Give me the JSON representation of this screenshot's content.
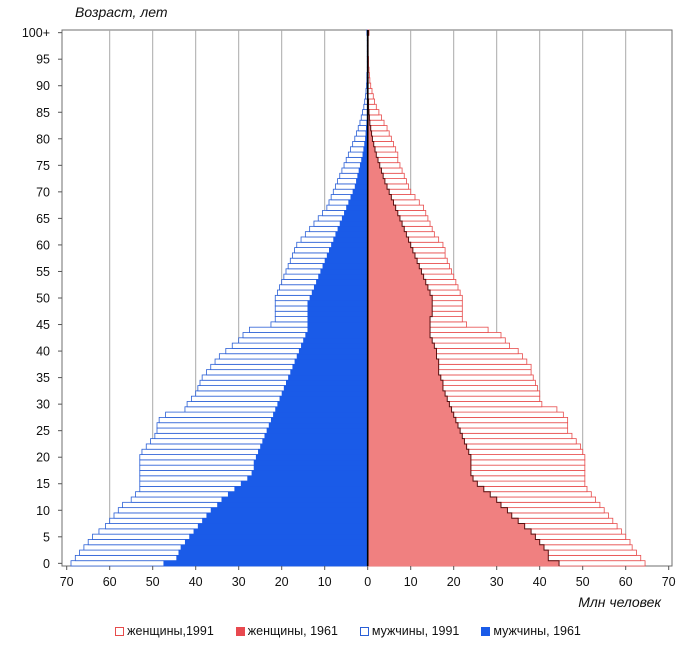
{
  "chart_data": {
    "type": "bar",
    "orientation": "horizontal",
    "subtype": "population-pyramid",
    "ylabel": "Возраст,  лет",
    "xlabel": "Млн человек",
    "x_ticks": [
      "70",
      "60",
      "50",
      "40",
      "30",
      "20",
      "10",
      "0",
      "10",
      "20",
      "30",
      "40",
      "50",
      "60",
      "70"
    ],
    "y_ticks": [
      "0",
      "5",
      "10",
      "15",
      "20",
      "25",
      "30",
      "35",
      "40",
      "45",
      "50",
      "55",
      "60",
      "65",
      "70",
      "75",
      "80",
      "85",
      "90",
      "95",
      "100+"
    ],
    "xlim": [
      -70,
      70
    ],
    "ylim": [
      0,
      100
    ],
    "grid": "vertical",
    "legend_position": "bottom",
    "ages": [
      0,
      1,
      2,
      3,
      4,
      5,
      6,
      7,
      8,
      9,
      10,
      11,
      12,
      13,
      14,
      15,
      16,
      17,
      18,
      19,
      20,
      21,
      22,
      23,
      24,
      25,
      26,
      27,
      28,
      29,
      30,
      31,
      32,
      33,
      34,
      35,
      36,
      37,
      38,
      39,
      40,
      41,
      42,
      43,
      44,
      45,
      46,
      47,
      48,
      49,
      50,
      51,
      52,
      53,
      54,
      55,
      56,
      57,
      58,
      59,
      60,
      61,
      62,
      63,
      64,
      65,
      66,
      67,
      68,
      69,
      70,
      71,
      72,
      73,
      74,
      75,
      76,
      77,
      78,
      79,
      80,
      81,
      82,
      83,
      84,
      85,
      86,
      87,
      88,
      89,
      90,
      91,
      92,
      93,
      94,
      95,
      96,
      97,
      98,
      99,
      100
    ],
    "series": [
      {
        "name": "женщины,1991",
        "side": "right",
        "style": "outline",
        "color": "#e74c4c",
        "values": [
          64.5,
          63.5,
          62.5,
          61.5,
          61.0,
          60.0,
          59.0,
          58.0,
          57.0,
          56.0,
          55.0,
          54.0,
          53.0,
          52.0,
          51.0,
          50.5,
          50.5,
          50.5,
          50.5,
          50.5,
          50.5,
          50.0,
          49.5,
          48.5,
          47.5,
          46.5,
          46.5,
          46.5,
          45.5,
          44.0,
          40.5,
          40.0,
          40.0,
          39.5,
          39.0,
          38.5,
          38.0,
          38.0,
          37.0,
          36.0,
          35.0,
          33.0,
          32.0,
          31.0,
          28.0,
          23.0,
          22.0,
          22.0,
          22.0,
          22.0,
          22.0,
          21.5,
          21.0,
          20.5,
          20.0,
          19.5,
          19.0,
          18.5,
          18.0,
          18.0,
          17.5,
          16.5,
          15.5,
          15.0,
          14.5,
          14.0,
          13.5,
          13.0,
          12.0,
          11.0,
          10.0,
          9.5,
          9.0,
          8.5,
          8.0,
          7.5,
          7.0,
          7.0,
          6.5,
          6.0,
          5.5,
          5.0,
          4.5,
          3.8,
          3.2,
          2.6,
          2.0,
          1.6,
          1.3,
          1.0,
          0.7,
          0.5,
          0.4,
          0.3,
          0.2,
          0.2,
          0.1,
          0.1,
          0.1,
          0.1,
          0.3
        ]
      },
      {
        "name": "женщины,  1961",
        "side": "right",
        "style": "filled",
        "color": "#f08080",
        "values": [
          44.5,
          42.0,
          42.0,
          41.0,
          40.0,
          39.0,
          38.0,
          36.5,
          35.0,
          33.5,
          32.5,
          31.0,
          30.0,
          28.5,
          27.0,
          25.5,
          24.5,
          24.0,
          24.0,
          24.0,
          24.0,
          23.5,
          23.0,
          22.5,
          22.0,
          21.5,
          21.0,
          20.5,
          20.0,
          19.5,
          19.0,
          18.5,
          18.0,
          17.5,
          17.5,
          17.0,
          16.5,
          16.5,
          16.5,
          16.0,
          16.0,
          15.5,
          15.0,
          14.5,
          14.5,
          14.5,
          14.5,
          15.0,
          15.0,
          15.0,
          15.0,
          14.5,
          14.0,
          13.5,
          13.0,
          12.5,
          12.0,
          11.5,
          11.0,
          10.5,
          10.0,
          9.5,
          9.0,
          8.5,
          8.0,
          7.5,
          7.0,
          6.5,
          6.0,
          5.5,
          5.0,
          4.5,
          4.0,
          3.6,
          3.2,
          2.8,
          2.4,
          2.0,
          1.7,
          1.4,
          1.1,
          0.9,
          0.7,
          0.5,
          0.4,
          0.3,
          0.2,
          0.2,
          0.1,
          0.1,
          0.1,
          0.1,
          0.1,
          0.1,
          0.1,
          0.1,
          0.1,
          0.1,
          0.1,
          0.1,
          0.2
        ]
      },
      {
        "name": "мужчины, 1991",
        "side": "left",
        "style": "outline",
        "color": "#2a5fd6",
        "values": [
          69.0,
          68.0,
          67.0,
          66.0,
          65.0,
          64.0,
          62.5,
          61.0,
          60.0,
          59.0,
          58.0,
          57.0,
          55.0,
          54.0,
          53.0,
          53.0,
          53.0,
          53.0,
          53.0,
          53.0,
          53.0,
          52.5,
          51.5,
          50.5,
          49.5,
          49.0,
          49.0,
          48.5,
          47.0,
          42.5,
          42.0,
          41.0,
          40.0,
          39.5,
          39.0,
          38.5,
          37.5,
          36.5,
          35.5,
          34.5,
          33.0,
          31.5,
          30.0,
          29.0,
          27.5,
          22.5,
          21.5,
          21.5,
          21.5,
          21.5,
          21.5,
          21.0,
          20.5,
          20.0,
          19.5,
          19.0,
          18.5,
          18.0,
          17.5,
          17.0,
          16.5,
          15.5,
          14.5,
          13.5,
          12.5,
          11.5,
          10.5,
          9.5,
          9.0,
          8.5,
          8.0,
          7.5,
          7.0,
          6.5,
          6.0,
          5.5,
          5.0,
          4.5,
          4.0,
          3.5,
          3.0,
          2.6,
          2.2,
          1.8,
          1.5,
          1.2,
          0.9,
          0.7,
          0.5,
          0.4,
          0.3,
          0.2,
          0.2,
          0.1,
          0.1,
          0.1,
          0.1,
          0.1,
          0.1,
          0.1,
          0.2
        ]
      },
      {
        "name": "мужчины, 1961",
        "side": "left",
        "style": "filled",
        "color": "#1a5be8",
        "values": [
          47.5,
          44.5,
          44.0,
          43.5,
          42.5,
          41.5,
          40.5,
          39.5,
          38.5,
          37.5,
          36.5,
          35.0,
          34.0,
          32.5,
          31.0,
          29.5,
          28.0,
          27.0,
          26.5,
          26.5,
          26.0,
          25.5,
          25.0,
          24.5,
          24.0,
          23.5,
          23.0,
          22.5,
          22.0,
          21.5,
          21.0,
          20.5,
          20.0,
          19.5,
          19.0,
          18.5,
          18.0,
          17.5,
          17.0,
          16.5,
          16.0,
          15.5,
          15.0,
          14.5,
          14.0,
          14.0,
          14.0,
          14.0,
          14.0,
          14.0,
          13.5,
          13.0,
          12.5,
          12.0,
          11.5,
          11.0,
          10.5,
          10.0,
          9.5,
          9.0,
          8.5,
          8.0,
          7.5,
          7.0,
          6.5,
          6.0,
          5.5,
          5.0,
          4.5,
          4.0,
          3.5,
          3.0,
          2.7,
          2.4,
          2.1,
          1.8,
          1.5,
          1.2,
          1.0,
          0.8,
          0.6,
          0.5,
          0.4,
          0.3,
          0.2,
          0.2,
          0.1,
          0.1,
          0.1,
          0.1,
          0.1,
          0.1,
          0.1,
          0.1,
          0.1,
          0.1,
          0.1,
          0.1,
          0.1,
          0.1,
          0.1
        ]
      }
    ]
  }
}
